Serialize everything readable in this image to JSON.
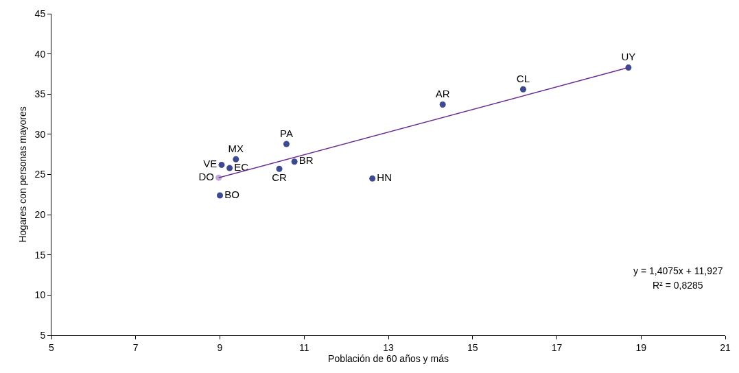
{
  "chart_data": {
    "type": "scatter",
    "xlabel": "Población de 60 años y más",
    "ylabel": "Hogares con personas mayores",
    "xlim": [
      5,
      21
    ],
    "xticks": [
      5,
      7,
      9,
      11,
      13,
      15,
      17,
      19,
      21
    ],
    "ylim": [
      5,
      45
    ],
    "yticks": [
      5,
      10,
      15,
      20,
      25,
      30,
      35,
      40,
      45
    ],
    "series": [
      {
        "marker": "circle",
        "x": [
          18.7,
          16.2,
          14.29,
          12.62,
          10.58,
          10.77,
          10.41,
          9.38,
          9.23,
          9.04,
          8.97,
          9.0
        ],
        "values": [
          38.3,
          35.6,
          33.7,
          24.5,
          28.8,
          26.6,
          25.7,
          26.9,
          25.8,
          26.2,
          24.6,
          22.4
        ],
        "colors": [
          "#3d4a8f",
          "#3d4a8f",
          "#3d4a8f",
          "#3d4a8f",
          "#3d4a8f",
          "#3d4a8f",
          "#3d4a8f",
          "#3d4a8f",
          "#3d4a8f",
          "#3d4a8f",
          "#c0a8d8",
          "#3d4a8f"
        ],
        "value_labels": [
          "UY",
          "CL",
          "AR",
          "HN",
          "PA",
          "BR",
          "CR",
          "MX",
          "EC",
          "VE",
          "DO",
          "BO"
        ]
      },
      {
        "type": "line",
        "color": "#6a2c91",
        "x": [
          8.97,
          18.7
        ],
        "values": [
          24.6,
          38.3
        ],
        "line_style": "solid"
      }
    ],
    "annotations": [
      "y = 1,4075x + 11,927",
      "R² = 0,8285"
    ]
  }
}
